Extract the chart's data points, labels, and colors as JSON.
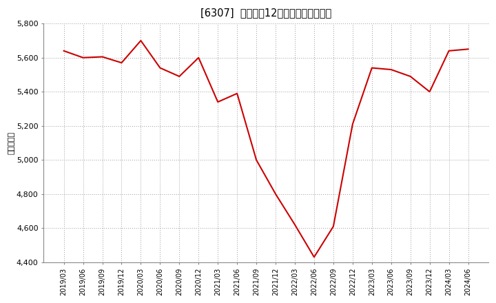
{
  "title": "[6307]  売上高の12か月移動合計の推移",
  "ylabel": "（百万円）",
  "line_color": "#cc0000",
  "bg_color": "#ffffff",
  "plot_bg_color": "#ffffff",
  "grid_color": "#999999",
  "ylim": [
    4400,
    5800
  ],
  "yticks": [
    4400,
    4600,
    4800,
    5000,
    5200,
    5400,
    5600,
    5800
  ],
  "dates": [
    "2019/03",
    "2019/06",
    "2019/09",
    "2019/12",
    "2020/03",
    "2020/06",
    "2020/09",
    "2020/12",
    "2021/03",
    "2021/06",
    "2021/09",
    "2021/12",
    "2022/03",
    "2022/06",
    "2022/09",
    "2022/12",
    "2023/03",
    "2023/06",
    "2023/09",
    "2023/12",
    "2024/03",
    "2024/06"
  ],
  "values": [
    5640,
    5600,
    5605,
    5570,
    5700,
    5540,
    5490,
    5600,
    5340,
    5390,
    5000,
    4800,
    4620,
    4430,
    4610,
    5210,
    5540,
    5530,
    5490,
    5400,
    5640,
    5650
  ]
}
